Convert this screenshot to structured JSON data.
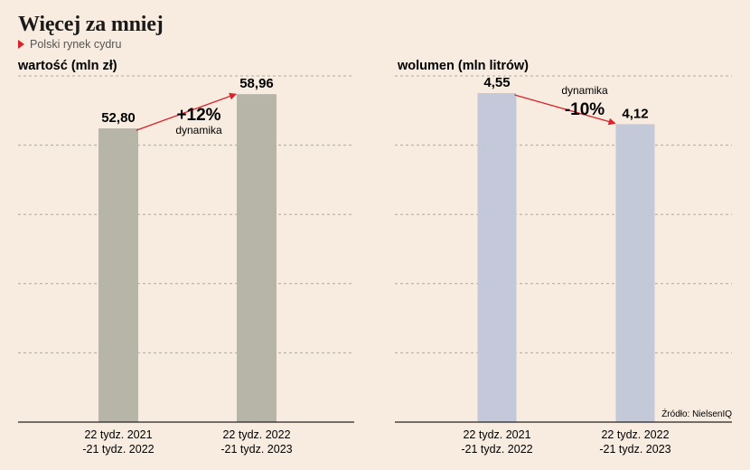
{
  "header": {
    "title": "Więcej za mniej",
    "subtitle": "Polski rynek cydru"
  },
  "source": "Źródło: NielsenIQ",
  "colors": {
    "background": "#f8ebdf",
    "value_bar": "#b7b5a8",
    "volume_bar": "#c3c9d8",
    "arrow": "#d8232a",
    "grid": "#b0a89e"
  },
  "chart_data": [
    {
      "type": "bar",
      "title": "wartość (mln zł)",
      "categories": [
        "22 tydz. 2021 -21 tydz. 2022",
        "22 tydz. 2022 -21 tydz. 2023"
      ],
      "category_lines": [
        [
          "22 tydz. 2021",
          "-21 tydz. 2022"
        ],
        [
          "22 tydz. 2022",
          "-21 tydz. 2023"
        ]
      ],
      "values": [
        52.8,
        58.96
      ],
      "value_labels": [
        "52,80",
        "58,96"
      ],
      "ylim": [
        0,
        65
      ],
      "grid": true,
      "annotation": {
        "change": "+12%",
        "label": "dynamika"
      }
    },
    {
      "type": "bar",
      "title": "wolumen (mln litrów)",
      "categories": [
        "22 tydz. 2021 -21 tydz. 2022",
        "22 tydz. 2022 -21 tydz. 2023"
      ],
      "category_lines": [
        [
          "22 tydz. 2021",
          "-21 tydz. 2022"
        ],
        [
          "22 tydz. 2022",
          "-21 tydz. 2023"
        ]
      ],
      "values": [
        4.55,
        4.12
      ],
      "value_labels": [
        "4,55",
        "4,12"
      ],
      "ylim": [
        0,
        5
      ],
      "grid": true,
      "annotation": {
        "change": "-10%",
        "label": "dynamika"
      }
    }
  ]
}
